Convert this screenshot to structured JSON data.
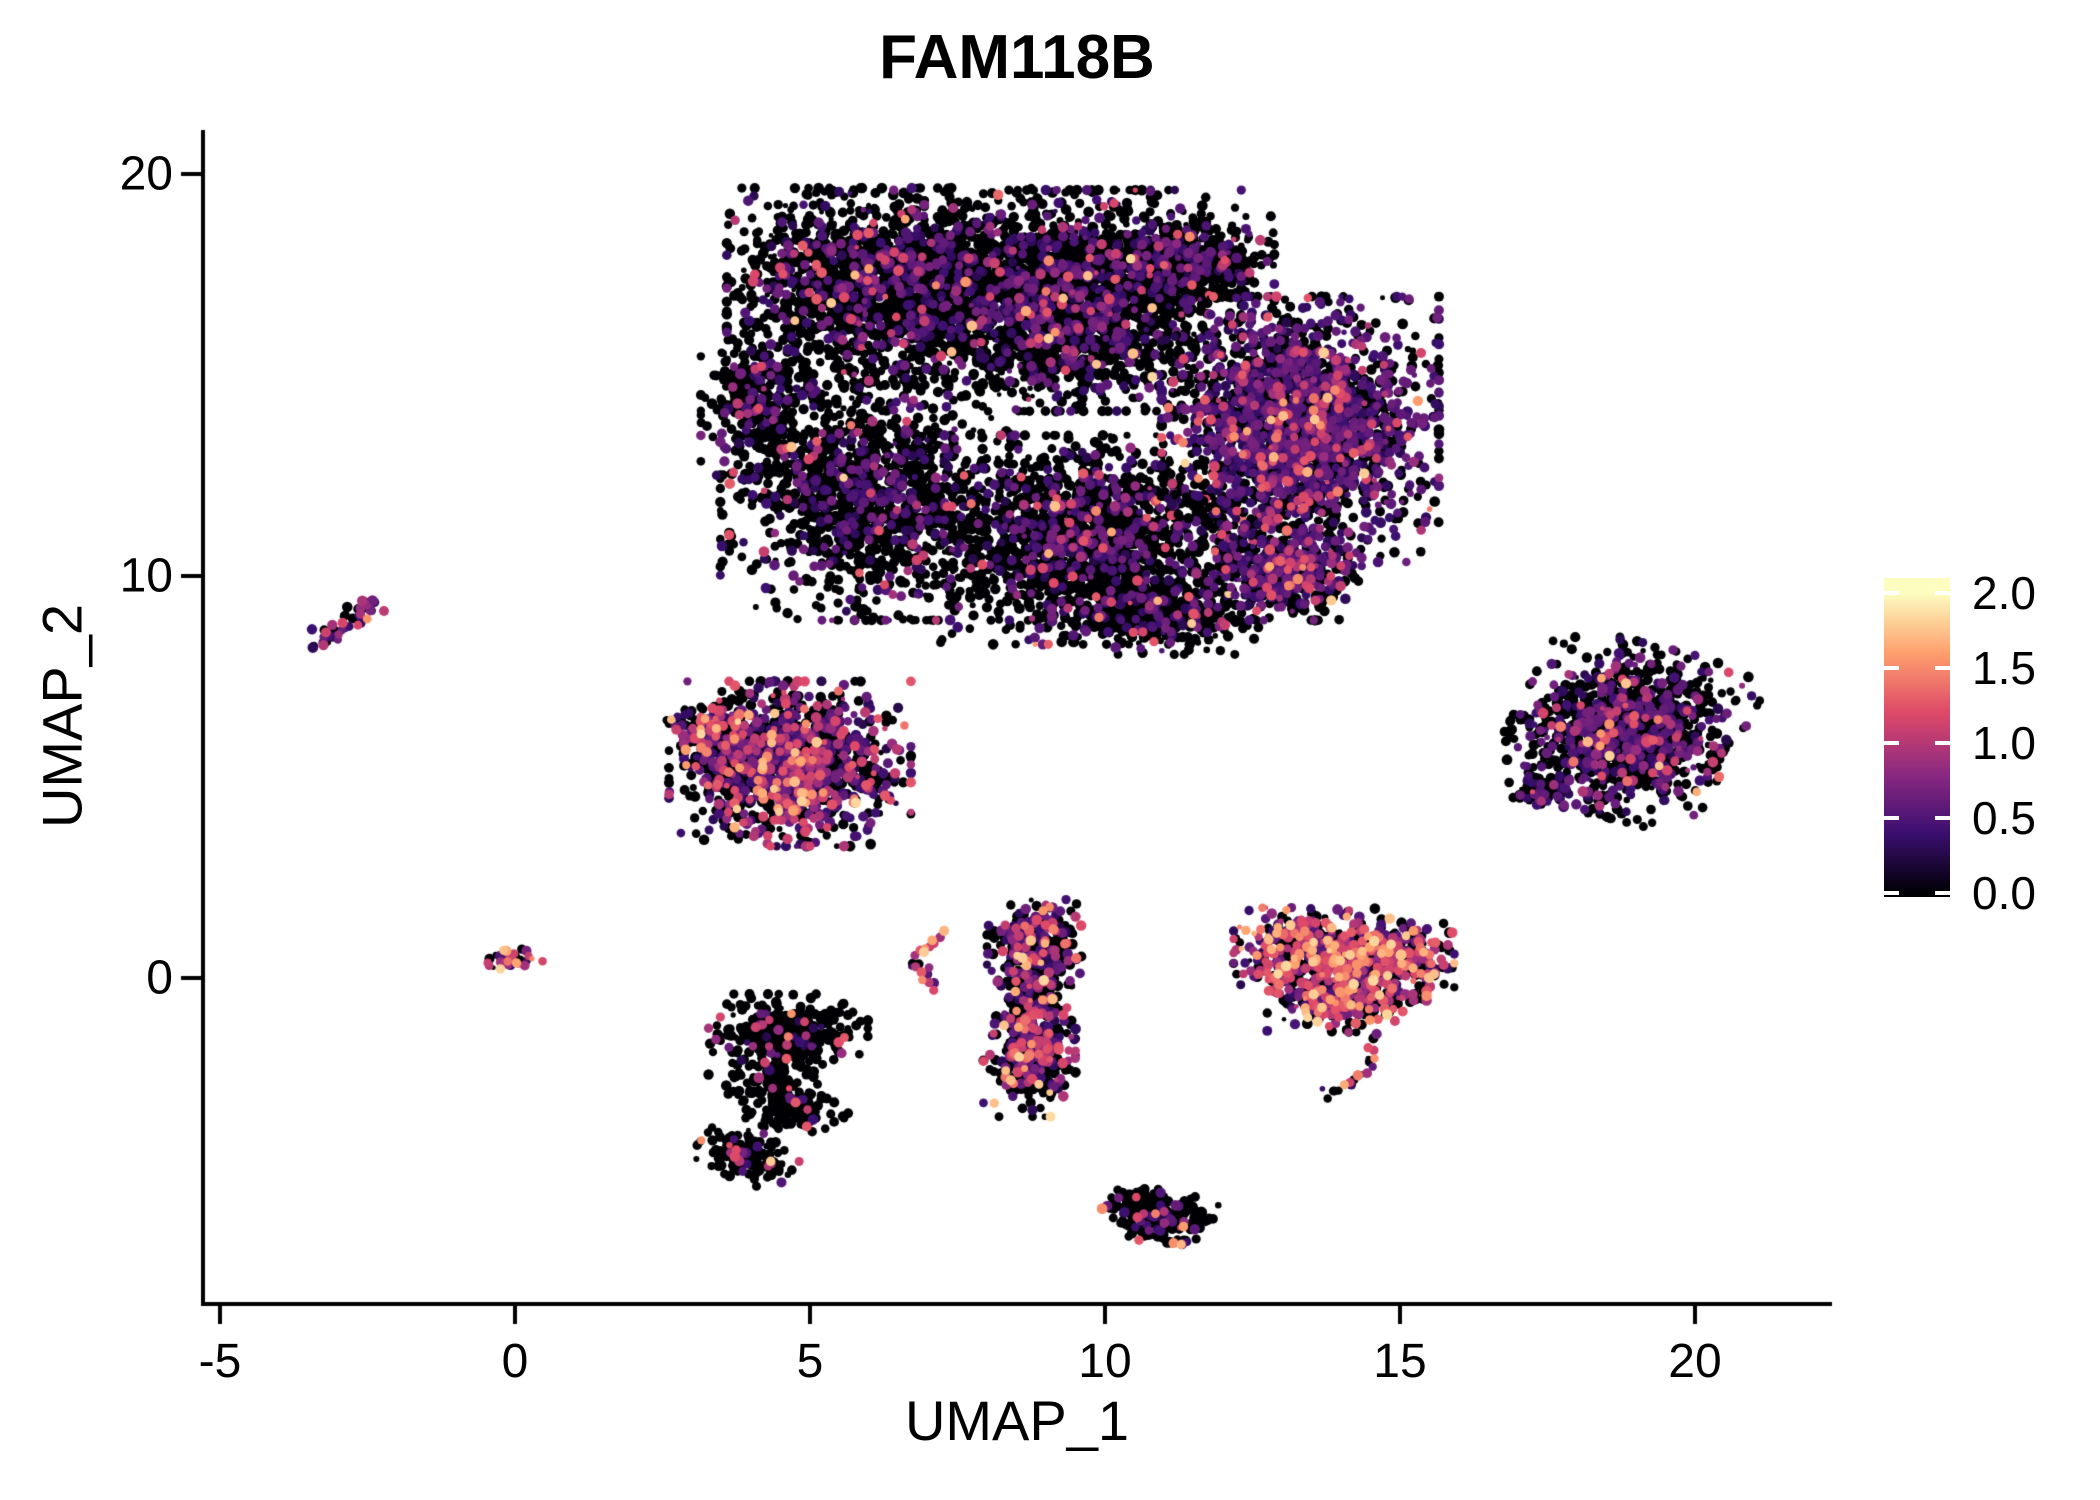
{
  "title": "FAM118B",
  "background_color": "#ffffff",
  "axes": {
    "color": "#000000",
    "x_label": "UMAP_1",
    "y_label": "UMAP_2",
    "x_ticks": [
      -5,
      0,
      5,
      10,
      15,
      20
    ],
    "y_ticks": [
      0,
      10,
      20
    ],
    "x_range": [
      -5.3,
      22.3
    ],
    "y_range": [
      -8.0,
      21.1
    ]
  },
  "colorbar": {
    "colormap": "magma",
    "min": 0.0,
    "max": 2.0,
    "tick_values": [
      2.0,
      1.5,
      1.0,
      0.5,
      0.0
    ],
    "tick_labels": [
      "2.0",
      "1.5",
      "1.0",
      "0.5",
      "0.0"
    ],
    "stops": [
      "#000004",
      "#3b0f70",
      "#8c2981",
      "#de4968",
      "#fe9f6d",
      "#fcfdbf"
    ],
    "tick_mark_color": "#ffffff"
  },
  "chart_data": {
    "type": "scatter",
    "title": "FAM118B",
    "xlabel": "UMAP_1",
    "ylabel": "UMAP_2",
    "xlim": [
      -5.3,
      22.3
    ],
    "ylim": [
      -8.0,
      21.1
    ],
    "legend_position": "right",
    "grid": false,
    "color_scale": "magma, expression 0.0 (black) to 2.0 (pale yellow)",
    "zero_color": "#000004",
    "seed": 1337,
    "expression_levels": {
      "zero": 0,
      "low": [
        0.25,
        0.7
      ],
      "mid": [
        0.8,
        1.3
      ],
      "high": [
        1.35,
        1.85
      ]
    },
    "clusters": [
      {
        "name": "main-upper-body",
        "weights": {
          "zero": 0.79,
          "low": 0.175,
          "mid": 0.03,
          "high": 0.005
        },
        "blobs": [
          {
            "cx": 6.19,
            "cy": 17.2,
            "rx": 2.6,
            "ry": 2.45,
            "n": 1900
          },
          {
            "cx": 9.41,
            "cy": 16.85,
            "rx": 2.9,
            "ry": 2.75,
            "n": 2300
          },
          {
            "cx": 11.27,
            "cy": 17.8,
            "rx": 1.6,
            "ry": 1.15,
            "n": 500
          },
          {
            "cx": 5.93,
            "cy": 12.0,
            "rx": 2.45,
            "ry": 3.1,
            "n": 1350
          },
          {
            "cx": 9.66,
            "cy": 10.9,
            "rx": 2.85,
            "ry": 2.6,
            "n": 1650
          },
          {
            "cx": 10.85,
            "cy": 9.1,
            "rx": 1.75,
            "ry": 1.05,
            "n": 380
          },
          {
            "cx": 4.1,
            "cy": 14.4,
            "rx": 0.95,
            "ry": 1.9,
            "n": 300
          }
        ]
      },
      {
        "name": "main-right-purple-lobe",
        "weights": {
          "zero": 0.5,
          "low": 0.42,
          "mid": 0.07,
          "high": 0.01
        },
        "blobs": [
          {
            "cx": 13.31,
            "cy": 13.65,
            "rx": 2.35,
            "ry": 3.3,
            "n": 2400
          },
          {
            "cx": 13.05,
            "cy": 10.05,
            "rx": 1.3,
            "ry": 1.15,
            "n": 480
          }
        ]
      },
      {
        "name": "far-left-streak",
        "weights": {
          "zero": 0.35,
          "low": 0.3,
          "mid": 0.3,
          "high": 0.05
        },
        "arcs": [
          {
            "p0": [
              -3.32,
              8.4
            ],
            "p1": [
              -2.87,
              8.9
            ],
            "p2": [
              -2.42,
              9.35
            ],
            "n": 42,
            "jitter": 0.13
          }
        ]
      },
      {
        "name": "left-middle-cluster",
        "weights": {
          "zero": 0.5,
          "low": 0.3,
          "mid": 0.16,
          "high": 0.04
        },
        "blobs": [
          {
            "cx": 4.66,
            "cy": 5.33,
            "rx": 2.05,
            "ry": 2.05,
            "n": 1250
          },
          {
            "cx": 3.2,
            "cy": 6.1,
            "rx": 0.7,
            "ry": 0.85,
            "n": 130
          }
        ]
      },
      {
        "name": "origin-small-blob",
        "weights": {
          "zero": 0.28,
          "low": 0.27,
          "mid": 0.35,
          "high": 0.1
        },
        "blobs": [
          {
            "cx": -0.08,
            "cy": 0.45,
            "rx": 0.52,
            "ry": 0.26,
            "angle": 15,
            "n": 34
          }
        ]
      },
      {
        "name": "lower-left-black-cluster",
        "weights": {
          "zero": 0.9,
          "low": 0.06,
          "mid": 0.035,
          "high": 0.005
        },
        "blobs": [
          {
            "cx": 4.63,
            "cy": -1.4,
            "rx": 1.35,
            "ry": 1.0,
            "n": 360
          },
          {
            "cx": 4.6,
            "cy": -3.05,
            "rx": 1.05,
            "ry": 0.75,
            "angle": -35,
            "n": 200
          },
          {
            "cx": 3.93,
            "cy": -4.4,
            "rx": 0.85,
            "ry": 0.6,
            "angle": -30,
            "n": 170
          }
        ]
      },
      {
        "name": "small-bright-arc",
        "weights": {
          "zero": 0.1,
          "low": 0.2,
          "mid": 0.45,
          "high": 0.25
        },
        "arcs": [
          {
            "p0": [
              7.3,
              1.15
            ],
            "p1": [
              6.45,
              0.45
            ],
            "p2": [
              7.15,
              -0.15
            ],
            "n": 26,
            "jitter": 0.08
          }
        ]
      },
      {
        "name": "tall-middle-cluster",
        "weights": {
          "zero": 0.56,
          "low": 0.24,
          "mid": 0.15,
          "high": 0.05
        },
        "blobs": [
          {
            "cx": 8.8,
            "cy": 0.7,
            "rx": 0.8,
            "ry": 1.25,
            "n": 320
          },
          {
            "cx": 8.72,
            "cy": -1.95,
            "rx": 0.78,
            "ry": 1.5,
            "n": 370
          },
          {
            "cx": 8.76,
            "cy": -0.6,
            "rx": 0.6,
            "ry": 0.8,
            "n": 120
          }
        ]
      },
      {
        "name": "right-colorful-cluster",
        "weights": {
          "zero": 0.4,
          "low": 0.22,
          "mid": 0.27,
          "high": 0.11
        },
        "blobs": [
          {
            "cx": 13.43,
            "cy": 0.6,
            "rx": 1.25,
            "ry": 1.15,
            "n": 430
          },
          {
            "cx": 14.77,
            "cy": 0.52,
            "rx": 1.15,
            "ry": 1.05,
            "n": 380
          },
          {
            "cx": 14.1,
            "cy": -0.55,
            "rx": 1.35,
            "ry": 0.8,
            "n": 260
          }
        ],
        "arcs": [
          {
            "p0": [
              14.65,
              -1.4
            ],
            "p1": [
              14.55,
              -2.6
            ],
            "p2": [
              13.65,
              -2.95
            ],
            "n": 20,
            "jitter": 0.07
          }
        ]
      },
      {
        "name": "bottom-cluster",
        "weights": {
          "zero": 0.83,
          "low": 0.09,
          "mid": 0.06,
          "high": 0.02
        },
        "blobs": [
          {
            "cx": 10.93,
            "cy": -5.92,
            "rx": 0.95,
            "ry": 0.7,
            "angle": -28,
            "n": 250
          }
        ]
      },
      {
        "name": "far-right-cluster",
        "weights": {
          "zero": 0.66,
          "low": 0.27,
          "mid": 0.06,
          "high": 0.01
        },
        "blobs": [
          {
            "cx": 18.81,
            "cy": 6.17,
            "rx": 1.9,
            "ry": 2.15,
            "angle": -20,
            "n": 1250
          },
          {
            "cx": 17.3,
            "cy": 4.7,
            "rx": 0.45,
            "ry": 0.55,
            "n": 60
          }
        ]
      }
    ]
  }
}
